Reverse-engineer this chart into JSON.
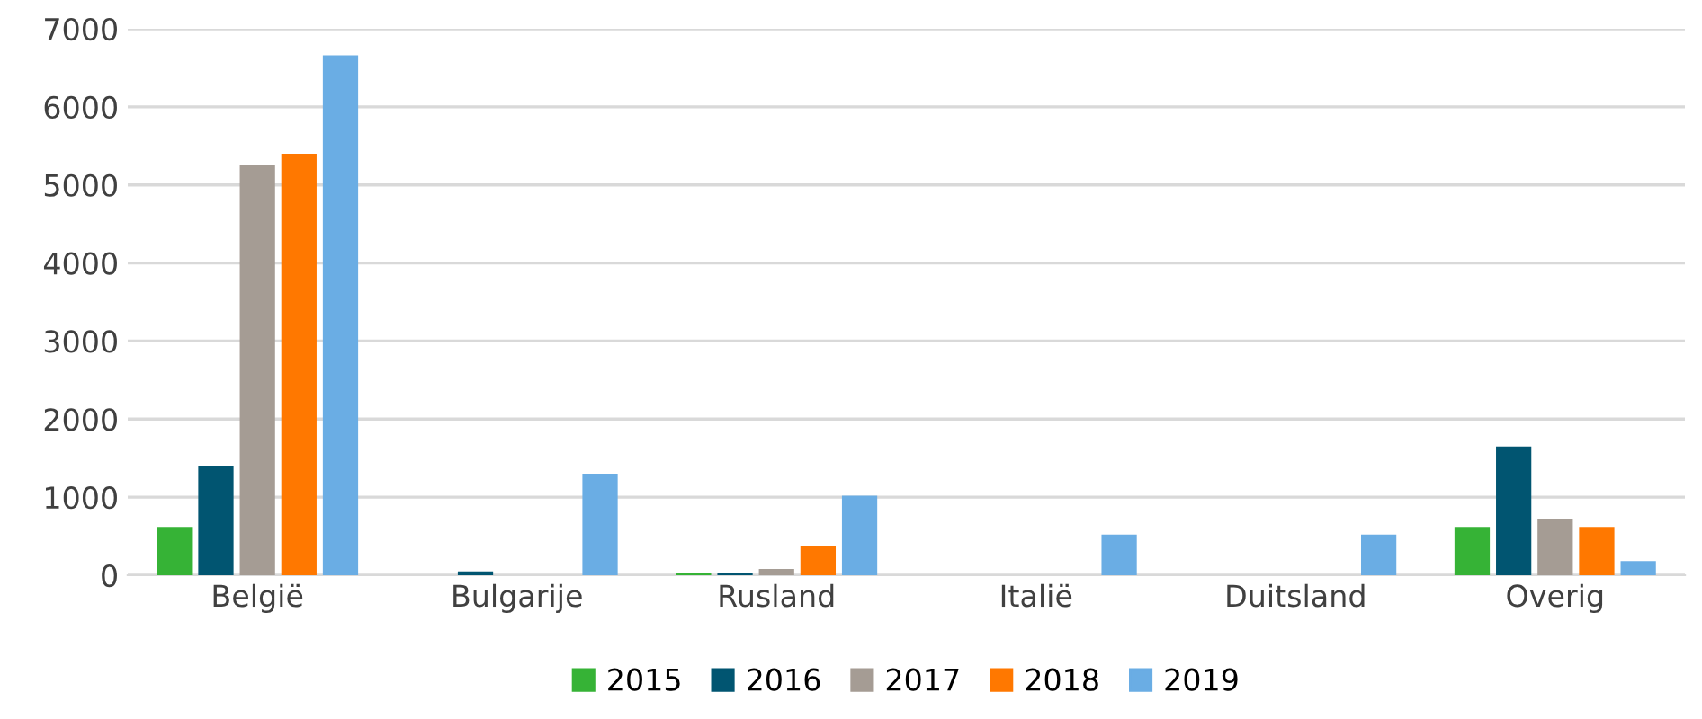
{
  "chart_data": {
    "type": "bar",
    "categories": [
      "België",
      "Bulgarije",
      "Rusland",
      "Italië",
      "Duitsland",
      "Overig"
    ],
    "series": [
      {
        "name": "2015",
        "color": "#36b336",
        "values": [
          620,
          0,
          30,
          0,
          0,
          620
        ]
      },
      {
        "name": "2016",
        "color": "#015571",
        "values": [
          1400,
          50,
          30,
          0,
          0,
          1650
        ]
      },
      {
        "name": "2017",
        "color": "#a59c94",
        "values": [
          5250,
          0,
          80,
          0,
          0,
          720
        ]
      },
      {
        "name": "2018",
        "color": "#ff7800",
        "values": [
          5400,
          0,
          380,
          0,
          0,
          620
        ]
      },
      {
        "name": "2019",
        "color": "#6aade4",
        "values": [
          6660,
          1300,
          1020,
          520,
          520,
          180
        ]
      }
    ],
    "ylim": [
      0,
      7000
    ],
    "yticks": [
      0,
      1000,
      2000,
      3000,
      4000,
      5000,
      6000,
      7000
    ],
    "grid": "y",
    "legend": "bottom"
  }
}
